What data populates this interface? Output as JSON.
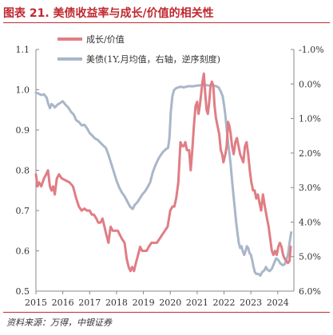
{
  "figure": {
    "title": "图表 21.  美债收益率与成长/价值的相关性",
    "source": "资料来源：万得，中银证券"
  },
  "colors": {
    "title": "#c0282f",
    "growth_value": "#e07d84",
    "treasury": "#aab6c8",
    "axis": "#888888",
    "text": "#333333"
  },
  "chart_data": {
    "type": "line",
    "title": "",
    "xlabel": "",
    "ylabel": "",
    "legend_position": "top-left",
    "grid": false,
    "x_ticks": [
      "2015",
      "2016",
      "2017",
      "2018",
      "2019",
      "2020",
      "2021",
      "2022",
      "2023",
      "2024"
    ],
    "xlim": [
      2015.0,
      2024.6
    ],
    "y_left": {
      "ticks": [
        "0.5",
        "0.6",
        "0.7",
        "0.8",
        "0.9",
        "1.0",
        "1.1"
      ],
      "ylim": [
        0.5,
        1.1
      ]
    },
    "y_right": {
      "ticks": [
        "-1.0%",
        "0.0%",
        "1.0%",
        "2.0%",
        "3.0%",
        "4.0%",
        "5.0%",
        "6.0%"
      ],
      "ylim": [
        -1.0,
        6.0
      ],
      "inverted": true
    },
    "series": [
      {
        "name": "成长/价值",
        "axis": "left",
        "color": "#e07d84",
        "points": [
          [
            2015.0,
            0.79
          ],
          [
            2015.06,
            0.76
          ],
          [
            2015.12,
            0.77
          ],
          [
            2015.2,
            0.76
          ],
          [
            2015.3,
            0.78
          ],
          [
            2015.38,
            0.79
          ],
          [
            2015.45,
            0.8
          ],
          [
            2015.52,
            0.76
          ],
          [
            2015.58,
            0.75
          ],
          [
            2015.64,
            0.76
          ],
          [
            2015.7,
            0.74
          ],
          [
            2015.78,
            0.78
          ],
          [
            2015.86,
            0.79
          ],
          [
            2015.96,
            0.78
          ],
          [
            2016.1,
            0.775
          ],
          [
            2016.25,
            0.77
          ],
          [
            2016.38,
            0.76
          ],
          [
            2016.5,
            0.73
          ],
          [
            2016.6,
            0.71
          ],
          [
            2016.7,
            0.7
          ],
          [
            2016.8,
            0.705
          ],
          [
            2016.9,
            0.7
          ],
          [
            2017.0,
            0.7
          ],
          [
            2017.08,
            0.69
          ],
          [
            2017.16,
            0.69
          ],
          [
            2017.25,
            0.68
          ],
          [
            2017.32,
            0.67
          ],
          [
            2017.4,
            0.67
          ],
          [
            2017.48,
            0.68
          ],
          [
            2017.55,
            0.66
          ],
          [
            2017.62,
            0.64
          ],
          [
            2017.7,
            0.62
          ],
          [
            2017.78,
            0.66
          ],
          [
            2017.86,
            0.65
          ],
          [
            2017.95,
            0.65
          ],
          [
            2018.05,
            0.65
          ],
          [
            2018.12,
            0.64
          ],
          [
            2018.2,
            0.63
          ],
          [
            2018.3,
            0.62
          ],
          [
            2018.38,
            0.58
          ],
          [
            2018.45,
            0.56
          ],
          [
            2018.52,
            0.55
          ],
          [
            2018.58,
            0.56
          ],
          [
            2018.65,
            0.55
          ],
          [
            2018.72,
            0.57
          ],
          [
            2018.8,
            0.59
          ],
          [
            2018.88,
            0.61
          ],
          [
            2018.95,
            0.6
          ],
          [
            2019.05,
            0.6
          ],
          [
            2019.12,
            0.6
          ],
          [
            2019.2,
            0.61
          ],
          [
            2019.3,
            0.62
          ],
          [
            2019.4,
            0.62
          ],
          [
            2019.5,
            0.62
          ],
          [
            2019.6,
            0.63
          ],
          [
            2019.7,
            0.64
          ],
          [
            2019.8,
            0.65
          ],
          [
            2019.9,
            0.66
          ],
          [
            2020.0,
            0.7
          ],
          [
            2020.08,
            0.71
          ],
          [
            2020.15,
            0.71
          ],
          [
            2020.22,
            0.73
          ],
          [
            2020.3,
            0.77
          ],
          [
            2020.38,
            0.87
          ],
          [
            2020.44,
            0.86
          ],
          [
            2020.5,
            0.86
          ],
          [
            2020.56,
            0.87
          ],
          [
            2020.62,
            0.85
          ],
          [
            2020.7,
            0.85
          ],
          [
            2020.76,
            0.8
          ],
          [
            2020.82,
            0.85
          ],
          [
            2020.88,
            0.91
          ],
          [
            2020.94,
            0.96
          ],
          [
            2021.0,
            0.97
          ],
          [
            2021.05,
            0.94
          ],
          [
            2021.1,
            0.96
          ],
          [
            2021.15,
            0.99
          ],
          [
            2021.2,
            1.02
          ],
          [
            2021.25,
            1.04
          ],
          [
            2021.3,
            0.99
          ],
          [
            2021.35,
            0.95
          ],
          [
            2021.4,
            0.94
          ],
          [
            2021.45,
            0.97
          ],
          [
            2021.5,
            1.01
          ],
          [
            2021.55,
            1.02
          ],
          [
            2021.6,
            1.01
          ],
          [
            2021.65,
            0.96
          ],
          [
            2021.7,
            0.93
          ],
          [
            2021.76,
            0.91
          ],
          [
            2021.82,
            0.89
          ],
          [
            2021.88,
            0.85
          ],
          [
            2021.93,
            0.84
          ],
          [
            2021.98,
            0.82
          ],
          [
            2022.05,
            0.84
          ],
          [
            2022.1,
            0.86
          ],
          [
            2022.15,
            0.92
          ],
          [
            2022.2,
            0.91
          ],
          [
            2022.25,
            0.89
          ],
          [
            2022.3,
            0.86
          ],
          [
            2022.36,
            0.84
          ],
          [
            2022.42,
            0.87
          ],
          [
            2022.48,
            0.88
          ],
          [
            2022.54,
            0.86
          ],
          [
            2022.6,
            0.84
          ],
          [
            2022.66,
            0.83
          ],
          [
            2022.72,
            0.82
          ],
          [
            2022.78,
            0.86
          ],
          [
            2022.84,
            0.87
          ],
          [
            2022.9,
            0.84
          ],
          [
            2022.96,
            0.8
          ],
          [
            2023.02,
            0.77
          ],
          [
            2023.08,
            0.75
          ],
          [
            2023.14,
            0.75
          ],
          [
            2023.2,
            0.73
          ],
          [
            2023.26,
            0.74
          ],
          [
            2023.32,
            0.72
          ],
          [
            2023.38,
            0.7
          ],
          [
            2023.45,
            0.74
          ],
          [
            2023.52,
            0.71
          ],
          [
            2023.6,
            0.68
          ],
          [
            2023.66,
            0.66
          ],
          [
            2023.72,
            0.63
          ],
          [
            2023.78,
            0.6
          ],
          [
            2023.84,
            0.59
          ],
          [
            2023.9,
            0.6
          ],
          [
            2023.96,
            0.59
          ],
          [
            2024.02,
            0.61
          ],
          [
            2024.08,
            0.62
          ],
          [
            2024.14,
            0.61
          ],
          [
            2024.2,
            0.59
          ],
          [
            2024.26,
            0.58
          ],
          [
            2024.32,
            0.575
          ],
          [
            2024.38,
            0.57
          ],
          [
            2024.44,
            0.575
          ],
          [
            2024.48,
            0.61
          ]
        ]
      },
      {
        "name": "美债(1Y,月均值，右轴，逆序刻度)",
        "axis": "right",
        "color": "#aab6c8",
        "points": [
          [
            2015.0,
            0.25
          ],
          [
            2015.1,
            0.28
          ],
          [
            2015.2,
            0.32
          ],
          [
            2015.3,
            0.3
          ],
          [
            2015.4,
            0.4
          ],
          [
            2015.45,
            0.55
          ],
          [
            2015.52,
            0.7
          ],
          [
            2015.58,
            0.58
          ],
          [
            2015.64,
            0.62
          ],
          [
            2015.7,
            0.68
          ],
          [
            2015.8,
            0.6
          ],
          [
            2015.9,
            0.55
          ],
          [
            2016.0,
            0.5
          ],
          [
            2016.1,
            0.6
          ],
          [
            2016.2,
            0.68
          ],
          [
            2016.3,
            0.8
          ],
          [
            2016.4,
            0.88
          ],
          [
            2016.5,
            1.05
          ],
          [
            2016.6,
            1.1
          ],
          [
            2016.7,
            1.2
          ],
          [
            2016.8,
            1.18
          ],
          [
            2016.9,
            1.28
          ],
          [
            2017.0,
            1.42
          ],
          [
            2017.1,
            1.5
          ],
          [
            2017.2,
            1.58
          ],
          [
            2017.3,
            1.62
          ],
          [
            2017.4,
            1.7
          ],
          [
            2017.5,
            1.78
          ],
          [
            2017.6,
            1.85
          ],
          [
            2017.7,
            2.05
          ],
          [
            2017.8,
            2.3
          ],
          [
            2017.9,
            2.55
          ],
          [
            2018.0,
            2.8
          ],
          [
            2018.1,
            3.0
          ],
          [
            2018.2,
            3.15
          ],
          [
            2018.3,
            3.25
          ],
          [
            2018.4,
            3.4
          ],
          [
            2018.5,
            3.55
          ],
          [
            2018.6,
            3.62
          ],
          [
            2018.68,
            3.5
          ],
          [
            2018.78,
            3.42
          ],
          [
            2018.88,
            3.3
          ],
          [
            2018.96,
            3.2
          ],
          [
            2019.05,
            3.12
          ],
          [
            2019.15,
            3.0
          ],
          [
            2019.25,
            2.85
          ],
          [
            2019.35,
            2.55
          ],
          [
            2019.45,
            2.35
          ],
          [
            2019.55,
            2.18
          ],
          [
            2019.65,
            2.05
          ],
          [
            2019.75,
            1.95
          ],
          [
            2019.85,
            1.88
          ],
          [
            2019.92,
            1.85
          ],
          [
            2019.97,
            1.55
          ],
          [
            2020.02,
            0.8
          ],
          [
            2020.08,
            0.35
          ],
          [
            2020.14,
            0.18
          ],
          [
            2020.22,
            0.12
          ],
          [
            2020.3,
            0.1
          ],
          [
            2020.4,
            0.08
          ],
          [
            2020.5,
            0.1
          ],
          [
            2020.6,
            0.08
          ],
          [
            2020.7,
            0.06
          ],
          [
            2020.8,
            0.07
          ],
          [
            2020.9,
            0.06
          ],
          [
            2021.0,
            0.05
          ],
          [
            2021.1,
            0.04
          ],
          [
            2021.2,
            0.03
          ],
          [
            2021.3,
            0.03
          ],
          [
            2021.4,
            0.04
          ],
          [
            2021.5,
            0.05
          ],
          [
            2021.6,
            0.05
          ],
          [
            2021.7,
            0.06
          ],
          [
            2021.8,
            0.1
          ],
          [
            2021.88,
            0.22
          ],
          [
            2021.95,
            0.35
          ],
          [
            2022.0,
            0.6
          ],
          [
            2022.05,
            0.9
          ],
          [
            2022.1,
            1.3
          ],
          [
            2022.15,
            1.7
          ],
          [
            2022.2,
            2.0
          ],
          [
            2022.25,
            2.35
          ],
          [
            2022.3,
            2.8
          ],
          [
            2022.35,
            3.2
          ],
          [
            2022.4,
            3.6
          ],
          [
            2022.45,
            4.0
          ],
          [
            2022.5,
            4.3
          ],
          [
            2022.55,
            4.6
          ],
          [
            2022.6,
            4.75
          ],
          [
            2022.65,
            4.7
          ],
          [
            2022.7,
            4.85
          ],
          [
            2022.75,
            4.95
          ],
          [
            2022.8,
            4.85
          ],
          [
            2022.85,
            4.7
          ],
          [
            2022.9,
            4.75
          ],
          [
            2022.95,
            4.9
          ],
          [
            2023.0,
            4.95
          ],
          [
            2023.05,
            5.1
          ],
          [
            2023.1,
            5.3
          ],
          [
            2023.15,
            5.45
          ],
          [
            2023.2,
            5.5
          ],
          [
            2023.28,
            5.5
          ],
          [
            2023.35,
            5.55
          ],
          [
            2023.42,
            5.45
          ],
          [
            2023.5,
            5.4
          ],
          [
            2023.56,
            5.3
          ],
          [
            2023.62,
            5.38
          ],
          [
            2023.7,
            5.42
          ],
          [
            2023.78,
            5.35
          ],
          [
            2023.86,
            5.2
          ],
          [
            2023.94,
            5.05
          ],
          [
            2024.02,
            5.1
          ],
          [
            2024.1,
            5.2
          ],
          [
            2024.18,
            5.25
          ],
          [
            2024.26,
            5.22
          ],
          [
            2024.32,
            5.1
          ],
          [
            2024.38,
            4.95
          ],
          [
            2024.44,
            4.6
          ],
          [
            2024.5,
            4.3
          ]
        ]
      }
    ]
  }
}
